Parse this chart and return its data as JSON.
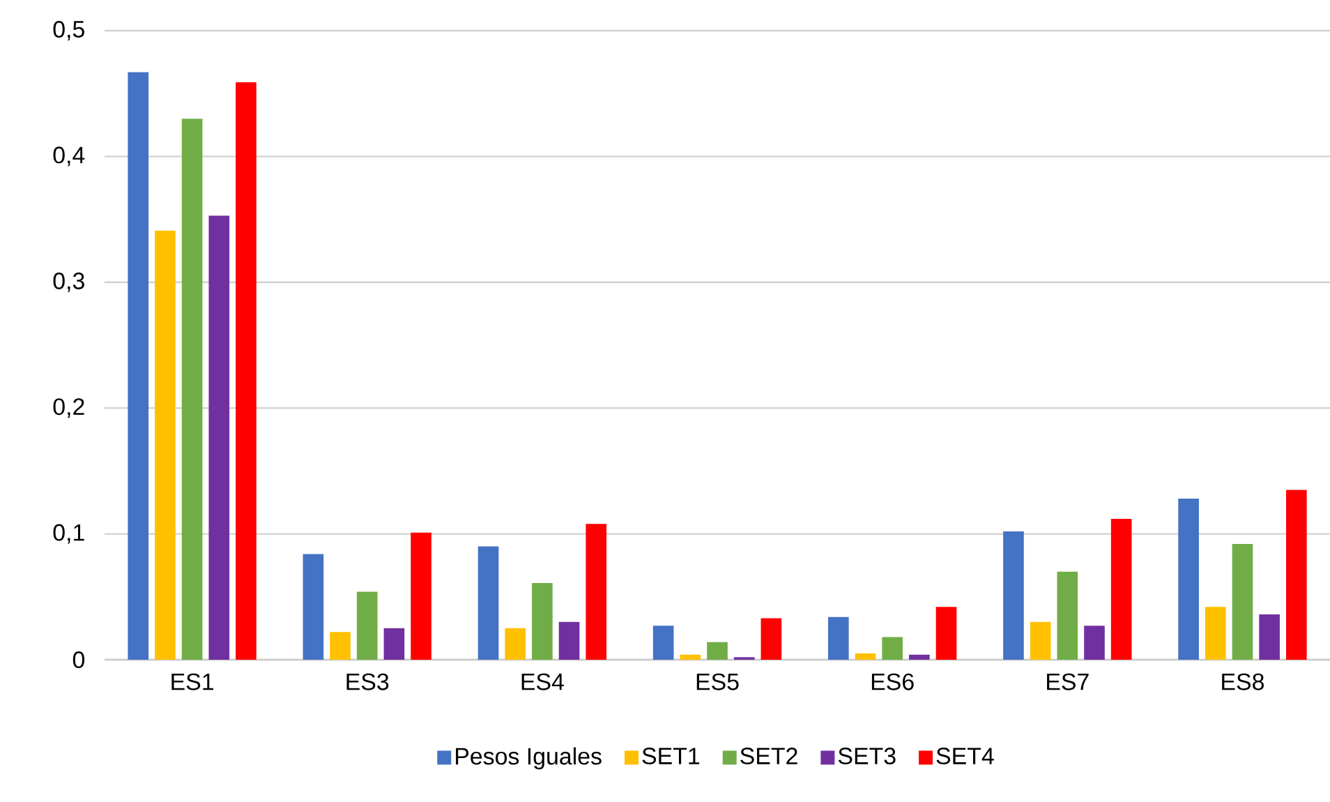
{
  "chart_data": {
    "type": "bar",
    "categories": [
      "ES1",
      "ES3",
      "ES4",
      "ES5",
      "ES6",
      "ES7",
      "ES8"
    ],
    "series": [
      {
        "name": "Pesos Iguales",
        "color": "#4472c4",
        "values": [
          0.467,
          0.084,
          0.09,
          0.027,
          0.034,
          0.102,
          0.128
        ]
      },
      {
        "name": "SET1",
        "color": "#ffc000",
        "values": [
          0.341,
          0.022,
          0.025,
          0.004,
          0.005,
          0.03,
          0.042
        ]
      },
      {
        "name": "SET2",
        "color": "#70ad47",
        "values": [
          0.43,
          0.054,
          0.061,
          0.014,
          0.018,
          0.07,
          0.092
        ]
      },
      {
        "name": "SET3",
        "color": "#7030a0",
        "values": [
          0.353,
          0.025,
          0.03,
          0.002,
          0.004,
          0.027,
          0.036
        ]
      },
      {
        "name": "SET4",
        "color": "#ff0000",
        "values": [
          0.459,
          0.101,
          0.108,
          0.033,
          0.042,
          0.112,
          0.135
        ]
      }
    ],
    "ylim": [
      0,
      0.5
    ],
    "yticks": [
      0,
      {
        "value": 0.1,
        "label": "0,1"
      },
      {
        "value": 0.2,
        "label": "0,2"
      },
      {
        "value": 0.3,
        "label": "0,3"
      },
      {
        "value": 0.4,
        "label": "0,4"
      },
      {
        "value": 0.5,
        "label": "0,5"
      }
    ],
    "grid": "y",
    "legend": "bottom"
  }
}
